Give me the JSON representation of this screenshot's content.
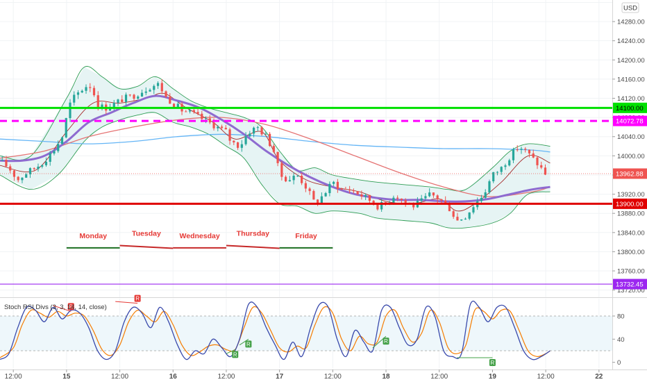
{
  "currency": "USD",
  "indicator_title": "Stoch RSI Divs (3, 3, 14, 14, close)",
  "colors": {
    "up": "#26a69a",
    "down": "#ef5350",
    "support": "#e00000",
    "resistance": "#00e000",
    "dashed_level": "#ff00ff",
    "low_level": "#9c27f0",
    "ma_purple": "#8e6bd0",
    "ma_blue": "#64b5f6",
    "ma_red": "#e57373",
    "ma_darkred": "#a52a2a",
    "bb_fill": "#e6f4f4",
    "bb_line": "#2e9d54",
    "stoch_k": "#3949ab",
    "stoch_d": "#f57c00"
  },
  "chart_data": {
    "type": "candlestick",
    "price_axis": {
      "ylim": [
        13705,
        14325
      ],
      "ticks": [
        "14320.00",
        "14280.00",
        "14240.00",
        "14200.00",
        "14160.00",
        "14120.00",
        "14080.00",
        "14040.00",
        "14000.00",
        "13960.00",
        "13920.00",
        "13880.00",
        "13840.00",
        "13800.00",
        "13760.00",
        "13720.00"
      ],
      "tick_values": [
        14320,
        14280,
        14240,
        14200,
        14160,
        14120,
        14080,
        14040,
        14000,
        13960,
        13920,
        13880,
        13840,
        13800,
        13760,
        13720
      ]
    },
    "time_axis": {
      "labels": [
        "12:00",
        "15",
        "12:00",
        "16",
        "12:00",
        "17",
        "12:00",
        "18",
        "12:00",
        "19",
        "12:00",
        "22"
      ],
      "bold": [
        false,
        true,
        false,
        true,
        false,
        true,
        false,
        true,
        false,
        true,
        false,
        true
      ],
      "positions_hours": [
        -12,
        0,
        12,
        24,
        36,
        48,
        60,
        72,
        84,
        96,
        108,
        120
      ],
      "xlim_hours": [
        -15,
        123
      ]
    },
    "levels": [
      {
        "name": "resistance",
        "value": 14100.0,
        "label": "14100.00",
        "style": "solid",
        "color": "#00e000"
      },
      {
        "name": "dashed",
        "value": 14072.78,
        "label": "14072.78",
        "style": "dashed",
        "color": "#ff00ff"
      },
      {
        "name": "support",
        "value": 13900.0,
        "label": "13900.00",
        "style": "solid",
        "color": "#e00000"
      },
      {
        "name": "low",
        "value": 13732.45,
        "label": "13732.45",
        "style": "solid",
        "color": "#9c27f0"
      }
    ],
    "last_price": {
      "value": 13962.88,
      "label": "13962.88"
    },
    "days": [
      {
        "label": "Monday",
        "start_h": 0,
        "end_h": 12,
        "y": 13808,
        "line_color": "#1b6e20"
      },
      {
        "label": "Tuesday",
        "start_h": 12,
        "end_h": 24,
        "y": 13813,
        "line_color": "#c62828"
      },
      {
        "label": "Wednesday",
        "start_h": 24,
        "end_h": 36,
        "y": 13808,
        "line_color": "#c62828"
      },
      {
        "label": "Thursday",
        "start_h": 36,
        "end_h": 48,
        "y": 13813,
        "line_color": "#c62828"
      },
      {
        "label": "Friday",
        "start_h": 48,
        "end_h": 60,
        "y": 13808,
        "line_color": "#1b6e20"
      }
    ],
    "price_path": [
      [
        -15,
        13990
      ],
      [
        -13,
        13975
      ],
      [
        -11,
        13950
      ],
      [
        -9,
        13965
      ],
      [
        -7,
        13975
      ],
      [
        -5,
        13990
      ],
      [
        -3,
        14010
      ],
      [
        -1,
        14040
      ],
      [
        0,
        14080
      ],
      [
        1,
        14115
      ],
      [
        3,
        14135
      ],
      [
        5,
        14150
      ],
      [
        6,
        14135
      ],
      [
        7,
        14105
      ],
      [
        9,
        14100
      ],
      [
        11,
        14110
      ],
      [
        13,
        14120
      ],
      [
        15,
        14125
      ],
      [
        17,
        14135
      ],
      [
        19,
        14145
      ],
      [
        21,
        14150
      ],
      [
        22,
        14125
      ],
      [
        24,
        14110
      ],
      [
        26,
        14095
      ],
      [
        28,
        14090
      ],
      [
        30,
        14080
      ],
      [
        32,
        14070
      ],
      [
        34,
        14060
      ],
      [
        36,
        14050
      ],
      [
        37,
        14030
      ],
      [
        39,
        14020
      ],
      [
        41,
        14050
      ],
      [
        43,
        14060
      ],
      [
        45,
        14040
      ],
      [
        47,
        14005
      ],
      [
        48,
        13960
      ],
      [
        50,
        13950
      ],
      [
        52,
        13960
      ],
      [
        54,
        13935
      ],
      [
        56,
        13900
      ],
      [
        58,
        13920
      ],
      [
        60,
        13945
      ],
      [
        62,
        13930
      ],
      [
        64,
        13930
      ],
      [
        66,
        13920
      ],
      [
        68,
        13910
      ],
      [
        70,
        13895
      ],
      [
        72,
        13900
      ],
      [
        74,
        13920
      ],
      [
        76,
        13905
      ],
      [
        78,
        13895
      ],
      [
        80,
        13905
      ],
      [
        82,
        13920
      ],
      [
        84,
        13910
      ],
      [
        86,
        13895
      ],
      [
        88,
        13865
      ],
      [
        90,
        13875
      ],
      [
        92,
        13900
      ],
      [
        94,
        13920
      ],
      [
        96,
        13960
      ],
      [
        98,
        13975
      ],
      [
        100,
        14000
      ],
      [
        102,
        14020
      ],
      [
        104,
        14005
      ],
      [
        106,
        13985
      ],
      [
        108,
        13962
      ]
    ],
    "ma_purple": [
      [
        -15,
        13990
      ],
      [
        -10,
        13990
      ],
      [
        -5,
        14000
      ],
      [
        0,
        14030
      ],
      [
        5,
        14070
      ],
      [
        10,
        14090
      ],
      [
        15,
        14110
      ],
      [
        20,
        14125
      ],
      [
        25,
        14115
      ],
      [
        30,
        14100
      ],
      [
        35,
        14075
      ],
      [
        40,
        14045
      ],
      [
        45,
        14010
      ],
      [
        50,
        13980
      ],
      [
        55,
        13955
      ],
      [
        60,
        13935
      ],
      [
        65,
        13920
      ],
      [
        70,
        13912
      ],
      [
        75,
        13908
      ],
      [
        80,
        13908
      ],
      [
        85,
        13905
      ],
      [
        90,
        13905
      ],
      [
        95,
        13910
      ],
      [
        100,
        13920
      ],
      [
        105,
        13930
      ],
      [
        109,
        13935
      ]
    ],
    "ma_blue": [
      [
        -15,
        14035
      ],
      [
        -5,
        14030
      ],
      [
        5,
        14025
      ],
      [
        15,
        14030
      ],
      [
        25,
        14040
      ],
      [
        35,
        14045
      ],
      [
        45,
        14040
      ],
      [
        55,
        14030
      ],
      [
        65,
        14022
      ],
      [
        75,
        14018
      ],
      [
        85,
        14015
      ],
      [
        95,
        14015
      ],
      [
        105,
        14012
      ],
      [
        109,
        14008
      ]
    ],
    "ma_red": [
      [
        -15,
        13995
      ],
      [
        -5,
        14010
      ],
      [
        5,
        14040
      ],
      [
        15,
        14060
      ],
      [
        25,
        14075
      ],
      [
        35,
        14080
      ],
      [
        45,
        14065
      ],
      [
        55,
        14035
      ],
      [
        65,
        14000
      ],
      [
        75,
        13965
      ],
      [
        85,
        13935
      ],
      [
        95,
        13915
      ],
      [
        105,
        13925
      ],
      [
        109,
        13935
      ]
    ],
    "ma_darkred": [
      [
        -15,
        13980
      ],
      [
        -7,
        13970
      ],
      [
        0,
        14050
      ],
      [
        6,
        14110
      ],
      [
        12,
        14110
      ],
      [
        18,
        14120
      ],
      [
        22,
        14130
      ],
      [
        27,
        14100
      ],
      [
        33,
        14070
      ],
      [
        38,
        14035
      ],
      [
        44,
        14050
      ],
      [
        48,
        13990
      ],
      [
        54,
        13950
      ],
      [
        60,
        13935
      ],
      [
        66,
        13925
      ],
      [
        72,
        13905
      ],
      [
        78,
        13900
      ],
      [
        84,
        13910
      ],
      [
        88,
        13885
      ],
      [
        92,
        13900
      ],
      [
        98,
        13945
      ],
      [
        104,
        14000
      ],
      [
        109,
        13985
      ]
    ],
    "bb_upper": [
      [
        -15,
        14000
      ],
      [
        -8,
        14000
      ],
      [
        0,
        14120
      ],
      [
        4,
        14185
      ],
      [
        8,
        14165
      ],
      [
        12,
        14140
      ],
      [
        16,
        14145
      ],
      [
        20,
        14165
      ],
      [
        24,
        14140
      ],
      [
        28,
        14115
      ],
      [
        32,
        14100
      ],
      [
        36,
        14090
      ],
      [
        40,
        14080
      ],
      [
        44,
        14060
      ],
      [
        48,
        14010
      ],
      [
        52,
        13970
      ],
      [
        56,
        13975
      ],
      [
        60,
        13960
      ],
      [
        66,
        13950
      ],
      [
        70,
        13945
      ],
      [
        76,
        13940
      ],
      [
        82,
        13935
      ],
      [
        86,
        13930
      ],
      [
        90,
        13930
      ],
      [
        96,
        13975
      ],
      [
        100,
        14010
      ],
      [
        104,
        14025
      ],
      [
        109,
        14020
      ]
    ],
    "bb_lower": [
      [
        -15,
        13960
      ],
      [
        -8,
        13930
      ],
      [
        -2,
        13960
      ],
      [
        4,
        14030
      ],
      [
        8,
        14060
      ],
      [
        12,
        14075
      ],
      [
        16,
        14085
      ],
      [
        20,
        14090
      ],
      [
        24,
        14070
      ],
      [
        28,
        14060
      ],
      [
        32,
        14045
      ],
      [
        36,
        14020
      ],
      [
        40,
        13995
      ],
      [
        44,
        13940
      ],
      [
        48,
        13900
      ],
      [
        52,
        13895
      ],
      [
        56,
        13880
      ],
      [
        60,
        13885
      ],
      [
        66,
        13880
      ],
      [
        70,
        13870
      ],
      [
        76,
        13865
      ],
      [
        82,
        13860
      ],
      [
        86,
        13850
      ],
      [
        90,
        13850
      ],
      [
        96,
        13860
      ],
      [
        100,
        13880
      ],
      [
        104,
        13920
      ],
      [
        109,
        13925
      ]
    ],
    "stoch_rsi": {
      "ylim": [
        -10,
        110
      ],
      "ticks": [
        "80",
        "40",
        "0"
      ],
      "tick_values": [
        80,
        40,
        0
      ],
      "bands": [
        80,
        20
      ],
      "k": [
        [
          -15,
          5
        ],
        [
          -13,
          15
        ],
        [
          -11,
          60
        ],
        [
          -9,
          95
        ],
        [
          -7,
          90
        ],
        [
          -5,
          70
        ],
        [
          -3,
          95
        ],
        [
          -1,
          75
        ],
        [
          1,
          90
        ],
        [
          3,
          85
        ],
        [
          5,
          60
        ],
        [
          7,
          20
        ],
        [
          9,
          5
        ],
        [
          11,
          20
        ],
        [
          13,
          70
        ],
        [
          15,
          95
        ],
        [
          17,
          85
        ],
        [
          19,
          60
        ],
        [
          21,
          95
        ],
        [
          23,
          70
        ],
        [
          25,
          30
        ],
        [
          27,
          5
        ],
        [
          29,
          20
        ],
        [
          31,
          15
        ],
        [
          33,
          40
        ],
        [
          35,
          25
        ],
        [
          37,
          10
        ],
        [
          39,
          40
        ],
        [
          41,
          100
        ],
        [
          43,
          95
        ],
        [
          45,
          60
        ],
        [
          47,
          30
        ],
        [
          49,
          5
        ],
        [
          51,
          35
        ],
        [
          53,
          10
        ],
        [
          55,
          60
        ],
        [
          57,
          100
        ],
        [
          59,
          95
        ],
        [
          61,
          40
        ],
        [
          63,
          10
        ],
        [
          65,
          55
        ],
        [
          67,
          35
        ],
        [
          69,
          20
        ],
        [
          71,
          90
        ],
        [
          73,
          95
        ],
        [
          75,
          60
        ],
        [
          77,
          30
        ],
        [
          79,
          40
        ],
        [
          81,
          95
        ],
        [
          83,
          80
        ],
        [
          85,
          20
        ],
        [
          87,
          10
        ],
        [
          89,
          15
        ],
        [
          91,
          100
        ],
        [
          93,
          95
        ],
        [
          95,
          70
        ],
        [
          97,
          95
        ],
        [
          99,
          95
        ],
        [
          101,
          60
        ],
        [
          103,
          20
        ],
        [
          105,
          5
        ],
        [
          107,
          10
        ],
        [
          109,
          20
        ]
      ],
      "d": [
        [
          -15,
          8
        ],
        [
          -12,
          25
        ],
        [
          -10,
          65
        ],
        [
          -8,
          90
        ],
        [
          -6,
          85
        ],
        [
          -4,
          78
        ],
        [
          -2,
          88
        ],
        [
          0,
          80
        ],
        [
          2,
          85
        ],
        [
          4,
          80
        ],
        [
          6,
          55
        ],
        [
          8,
          22
        ],
        [
          10,
          12
        ],
        [
          12,
          30
        ],
        [
          14,
          70
        ],
        [
          16,
          90
        ],
        [
          18,
          80
        ],
        [
          20,
          70
        ],
        [
          22,
          88
        ],
        [
          24,
          65
        ],
        [
          26,
          30
        ],
        [
          28,
          12
        ],
        [
          30,
          18
        ],
        [
          32,
          28
        ],
        [
          34,
          30
        ],
        [
          36,
          22
        ],
        [
          38,
          22
        ],
        [
          40,
          60
        ],
        [
          42,
          95
        ],
        [
          44,
          85
        ],
        [
          46,
          55
        ],
        [
          48,
          25
        ],
        [
          50,
          18
        ],
        [
          52,
          28
        ],
        [
          54,
          25
        ],
        [
          56,
          65
        ],
        [
          58,
          95
        ],
        [
          60,
          85
        ],
        [
          62,
          40
        ],
        [
          64,
          20
        ],
        [
          66,
          45
        ],
        [
          68,
          32
        ],
        [
          70,
          35
        ],
        [
          72,
          80
        ],
        [
          74,
          90
        ],
        [
          76,
          58
        ],
        [
          78,
          35
        ],
        [
          80,
          50
        ],
        [
          82,
          90
        ],
        [
          84,
          70
        ],
        [
          86,
          25
        ],
        [
          88,
          15
        ],
        [
          90,
          30
        ],
        [
          92,
          90
        ],
        [
          94,
          88
        ],
        [
          96,
          75
        ],
        [
          98,
          90
        ],
        [
          100,
          88
        ],
        [
          102,
          55
        ],
        [
          104,
          20
        ],
        [
          106,
          10
        ],
        [
          108,
          15
        ],
        [
          109,
          20
        ]
      ],
      "bearish_divs": [
        {
          "label": "R",
          "from": [
            -3,
            98
          ],
          "to": [
            1,
            88
          ]
        },
        {
          "label": "R",
          "from": [
            11,
            105
          ],
          "to": [
            16,
            102
          ]
        }
      ],
      "bullish_divs": [
        {
          "label": "R",
          "from": [
            36,
            15
          ],
          "to": [
            38,
            22
          ]
        },
        {
          "label": "R",
          "from": [
            39,
            30
          ],
          "to": [
            41,
            40
          ]
        },
        {
          "label": "R",
          "from": [
            69,
            25
          ],
          "to": [
            72,
            45
          ]
        },
        {
          "label": "R",
          "from": [
            88,
            8
          ],
          "to": [
            96,
            8
          ]
        }
      ]
    }
  }
}
